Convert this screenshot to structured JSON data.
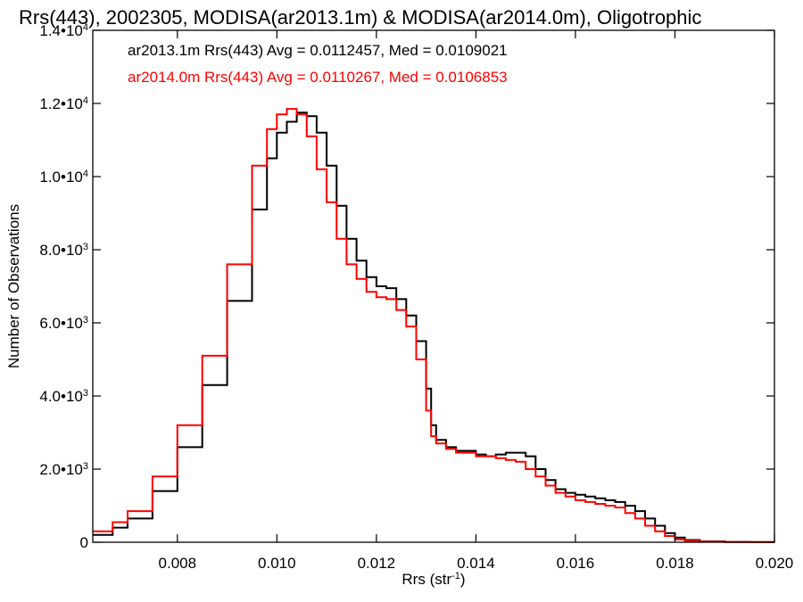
{
  "chart_data": {
    "type": "line",
    "title": "Rrs(443), 2002305, MODISA(ar2013.1m) & MODISA(ar2014.0m), Oligotrophic",
    "xlabel": "Rrs (str",
    "xlabel_sup": "-1",
    "xlabel_end": ")",
    "ylabel": "Number of Observations",
    "xlim": [
      0.0063,
      0.02
    ],
    "ylim": [
      0,
      14000
    ],
    "x_ticks": [
      {
        "value": 0.008,
        "label": "0.008"
      },
      {
        "value": 0.01,
        "label": "0.010"
      },
      {
        "value": 0.012,
        "label": "0.012"
      },
      {
        "value": 0.014,
        "label": "0.014"
      },
      {
        "value": 0.016,
        "label": "0.016"
      },
      {
        "value": 0.018,
        "label": "0.018"
      },
      {
        "value": 0.02,
        "label": "0.020"
      }
    ],
    "y_ticks": [
      {
        "value": 0,
        "mant": "0",
        "exp": ""
      },
      {
        "value": 2000,
        "mant": "2.0•10",
        "exp": "3"
      },
      {
        "value": 4000,
        "mant": "4.0•10",
        "exp": "3"
      },
      {
        "value": 6000,
        "mant": "6.0•10",
        "exp": "3"
      },
      {
        "value": 8000,
        "mant": "8.0•10",
        "exp": "3"
      },
      {
        "value": 10000,
        "mant": "1.0•10",
        "exp": "4"
      },
      {
        "value": 12000,
        "mant": "1.2•10",
        "exp": "4"
      },
      {
        "value": 14000,
        "mant": "1.4•10",
        "exp": "4"
      }
    ],
    "legend_position": "top-left",
    "grid": false,
    "series": [
      {
        "name": "ar2013.1m Rrs(443) Avg = 0.0112457, Med = 0.0109021",
        "color": "#000000",
        "x": [
          0.0063,
          0.0067,
          0.007,
          0.0075,
          0.008,
          0.0085,
          0.009,
          0.0095,
          0.0098,
          0.01,
          0.0102,
          0.0104,
          0.0106,
          0.0108,
          0.011,
          0.0112,
          0.0114,
          0.0116,
          0.0118,
          0.012,
          0.0122,
          0.0124,
          0.0126,
          0.0128,
          0.013,
          0.0131,
          0.0132,
          0.0134,
          0.0136,
          0.0138,
          0.014,
          0.0142,
          0.0144,
          0.0146,
          0.0148,
          0.015,
          0.0152,
          0.0154,
          0.0156,
          0.0158,
          0.016,
          0.0162,
          0.0164,
          0.0166,
          0.0168,
          0.017,
          0.0172,
          0.0174,
          0.0176,
          0.0178,
          0.018,
          0.0182,
          0.0185,
          0.019,
          0.0195,
          0.02
        ],
        "y": [
          200,
          400,
          650,
          1400,
          2600,
          4300,
          6600,
          9100,
          10500,
          11200,
          11500,
          11750,
          11650,
          11200,
          10300,
          9200,
          8300,
          7700,
          7250,
          7000,
          6950,
          6650,
          6200,
          5500,
          4200,
          3200,
          2800,
          2600,
          2500,
          2500,
          2400,
          2350,
          2400,
          2450,
          2450,
          2350,
          2000,
          1700,
          1450,
          1350,
          1300,
          1250,
          1200,
          1150,
          1100,
          1000,
          850,
          650,
          450,
          250,
          130,
          60,
          25,
          10,
          5,
          0
        ]
      },
      {
        "name": "ar2014.0m Rrs(443) Avg = 0.0110267, Med = 0.0106853",
        "color": "#ff0000",
        "x": [
          0.0063,
          0.0067,
          0.007,
          0.0075,
          0.008,
          0.0085,
          0.009,
          0.0095,
          0.0098,
          0.01,
          0.0102,
          0.0104,
          0.0106,
          0.0108,
          0.011,
          0.0112,
          0.0114,
          0.0116,
          0.0118,
          0.012,
          0.0122,
          0.0124,
          0.0126,
          0.0128,
          0.013,
          0.0131,
          0.0132,
          0.0134,
          0.0136,
          0.0138,
          0.014,
          0.0142,
          0.0144,
          0.0146,
          0.0148,
          0.015,
          0.0152,
          0.0154,
          0.0156,
          0.0158,
          0.016,
          0.0162,
          0.0164,
          0.0166,
          0.0168,
          0.017,
          0.0172,
          0.0174,
          0.0176,
          0.0178,
          0.018,
          0.0182,
          0.0185,
          0.019,
          0.0195,
          0.02
        ],
        "y": [
          300,
          550,
          850,
          1800,
          3200,
          5100,
          7600,
          10300,
          11300,
          11700,
          11850,
          11700,
          11100,
          10200,
          9300,
          8300,
          7600,
          7200,
          6850,
          6700,
          6650,
          6350,
          5900,
          5000,
          3600,
          2900,
          2700,
          2550,
          2450,
          2450,
          2350,
          2350,
          2300,
          2250,
          2200,
          2000,
          1800,
          1550,
          1350,
          1250,
          1150,
          1100,
          1050,
          1000,
          950,
          800,
          650,
          450,
          300,
          170,
          80,
          40,
          15,
          5,
          2,
          0
        ]
      }
    ]
  }
}
